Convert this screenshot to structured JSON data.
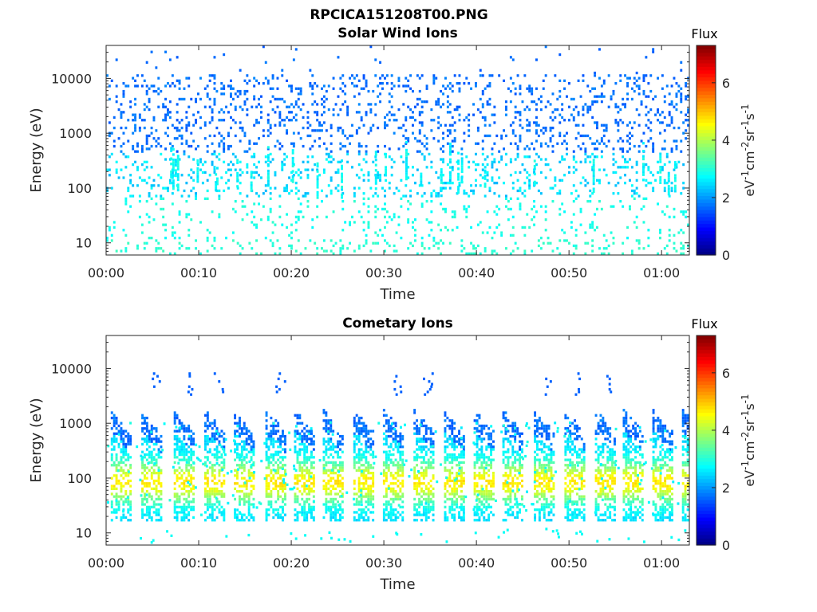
{
  "figure_title": "RPCICA151208T00.PNG",
  "chart_data": [
    {
      "type": "heatmap",
      "title": "Solar Wind Ions",
      "xlabel": "Time",
      "ylabel": "Energy (eV)",
      "x_tick_labels": [
        "00:00",
        "00:10",
        "00:20",
        "00:30",
        "00:40",
        "00:50",
        "01:00"
      ],
      "x_ticks_min": [
        0,
        10,
        20,
        30,
        40,
        50,
        60
      ],
      "xlim_min": [
        0,
        63
      ],
      "y_scale": "log",
      "y_tick_labels": [
        "10",
        "100",
        "1000",
        "10000"
      ],
      "y_ticks": [
        10,
        100,
        1000,
        10000
      ],
      "ylim": [
        6,
        40000
      ],
      "colorbar": {
        "title": "Flux",
        "label_parts": [
          "eV",
          "-1",
          "cm",
          "-2",
          "sr",
          "-1",
          "s",
          "-1"
        ],
        "tick_labels": [
          "0",
          "2",
          "4",
          "6"
        ],
        "ticks": [
          0,
          2,
          4,
          6
        ],
        "range": [
          0,
          7.3
        ],
        "colormap": "jet"
      },
      "pattern": "scattered",
      "bursts_min": []
    },
    {
      "type": "heatmap",
      "title": "Cometary Ions",
      "xlabel": "Time",
      "ylabel": "Energy (eV)",
      "x_tick_labels": [
        "00:00",
        "00:10",
        "00:20",
        "00:30",
        "00:40",
        "00:50",
        "01:00"
      ],
      "x_ticks_min": [
        0,
        10,
        20,
        30,
        40,
        50,
        60
      ],
      "xlim_min": [
        0,
        63
      ],
      "y_scale": "log",
      "y_tick_labels": [
        "10",
        "100",
        "1000",
        "10000"
      ],
      "y_ticks": [
        10,
        100,
        1000,
        10000
      ],
      "ylim": [
        6,
        40000
      ],
      "colorbar": {
        "title": "Flux",
        "label_parts": [
          "eV",
          "-1",
          "cm",
          "-2",
          "sr",
          "-1",
          "s",
          "-1"
        ],
        "tick_labels": [
          "0",
          "2",
          "4",
          "6"
        ],
        "ticks": [
          0,
          2,
          4,
          6
        ],
        "range": [
          0,
          7.3
        ],
        "colormap": "jet"
      },
      "pattern": "periodic_bursts",
      "bursts_min": [
        0.5,
        3.8,
        7.3,
        10.6,
        13.8,
        17.2,
        20.3,
        23.4,
        26.7,
        29.9,
        33.2,
        36.5,
        39.7,
        42.8,
        46.2,
        49.5,
        52.8,
        55.8,
        59.0,
        62.2
      ]
    }
  ]
}
